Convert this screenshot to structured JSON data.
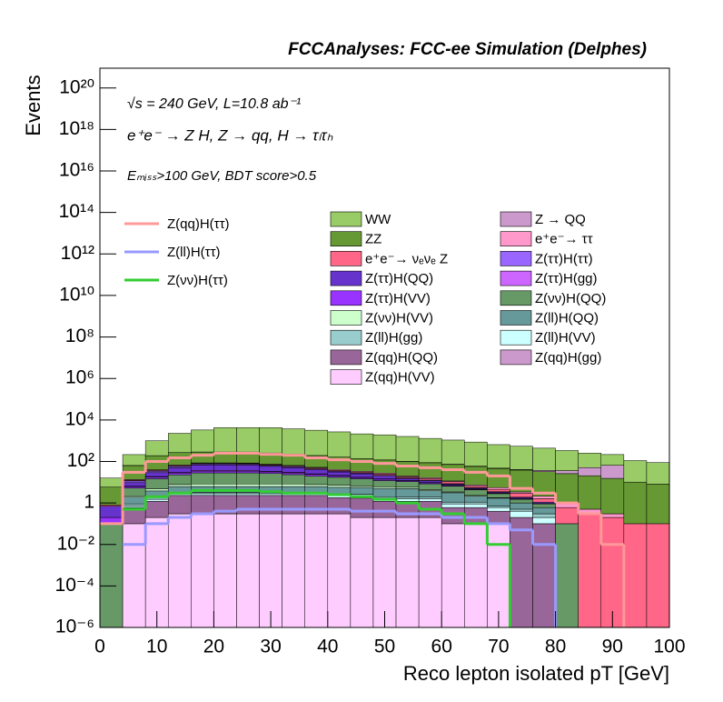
{
  "chart_data": {
    "type": "stacked_histogram",
    "title": "FCCAnalyses: FCC-ee Simulation (Delphes)",
    "x_label": "Reco lepton isolated pT [GeV]",
    "y_label": "Events",
    "annotations": [
      "√s = 240 GeV, L=10.8 ab⁻¹",
      "e⁺e⁻ → Z H, Z → qq, H → τₗτₕ",
      "Eₘᵢₛₛ>100 GeV, BDT score>0.5"
    ],
    "log_y": true,
    "bins": [
      0,
      4,
      8,
      12,
      16,
      20,
      24,
      28,
      32,
      36,
      40,
      44,
      48,
      52,
      56,
      60,
      64,
      68,
      72,
      76,
      80,
      84,
      88,
      92,
      96,
      100
    ],
    "xlim": [
      0,
      100
    ],
    "xticks": [
      0,
      10,
      20,
      30,
      40,
      50,
      60,
      70,
      80,
      90,
      100
    ],
    "ylim": [
      1e-06,
      9e+20
    ],
    "yticks": [
      {
        "value": 1e-06,
        "label": "10⁻⁶"
      },
      {
        "value": 0.0001,
        "label": "10⁻⁴"
      },
      {
        "value": 0.01,
        "label": "10⁻²"
      },
      1,
      {
        "value": 100.0,
        "label": "10²"
      },
      {
        "value": 10000.0,
        "label": "10⁴"
      },
      {
        "value": 1000000.0,
        "label": "10⁶"
      },
      {
        "value": 100000000.0,
        "label": "10⁸"
      },
      {
        "value": 10000000000.0,
        "label": "10¹⁰"
      },
      {
        "value": 1000000000000.0,
        "label": "10¹²"
      },
      {
        "value": 100000000000000.0,
        "label": "10¹⁴"
      },
      {
        "value": 1e+16,
        "label": "10¹⁶"
      },
      {
        "value": 1e+18,
        "label": "10¹⁸"
      },
      {
        "value": 1e+20,
        "label": "10²⁰"
      }
    ],
    "series": [
      {
        "name": "WW",
        "color": "#99cc66",
        "values": [
          10,
          150,
          800,
          2000,
          3000,
          4000,
          4000,
          4000,
          3500,
          3000,
          2500,
          2000,
          1800,
          1500,
          1200,
          1000,
          800,
          600,
          500,
          400,
          300,
          200,
          150,
          100,
          80
        ]
      },
      {
        "name": "Z → QQ",
        "color": "#cc99cc",
        "values": [
          0,
          0.5,
          0.5,
          0.5,
          1,
          1,
          1,
          1,
          1,
          1,
          1,
          1,
          1,
          1,
          1,
          2,
          2,
          2,
          2,
          5,
          10,
          30,
          50,
          0,
          0
        ]
      },
      {
        "name": "ZZ",
        "color": "#669933",
        "values": [
          5,
          50,
          150,
          200,
          200,
          200,
          200,
          180,
          160,
          140,
          120,
          100,
          90,
          80,
          70,
          60,
          50,
          40,
          35,
          30,
          25,
          20,
          15,
          10,
          8
        ]
      },
      {
        "name": "e⁺e⁻→ ττ",
        "color": "#ff99cc",
        "values": [
          0,
          1,
          3,
          5,
          5,
          5,
          5,
          5,
          5,
          4,
          4,
          3,
          3,
          2,
          2,
          1,
          1,
          1,
          0.5,
          0.5,
          0.3,
          0.2,
          0.1,
          0,
          0
        ]
      },
      {
        "name": "e⁺e⁻→ νₑνₑ Z",
        "color": "#ff6688",
        "values": [
          0.1,
          1,
          3,
          5,
          5,
          5,
          5,
          5,
          4,
          4,
          3,
          3,
          3,
          2,
          2,
          2,
          1,
          1,
          1,
          0.5,
          0.5,
          0.3,
          0.2,
          0.1,
          0.1
        ]
      },
      {
        "name": "Z(ττ)H(ττ)",
        "color": "#9966ff",
        "values": [
          0,
          2,
          5,
          8,
          8,
          8,
          7,
          6,
          5,
          4,
          3,
          2,
          2,
          1,
          1,
          0.5,
          0.3,
          0.2,
          0.1,
          0.1,
          0,
          0,
          0,
          0,
          0
        ]
      },
      {
        "name": "Z(ττ)H(QQ)",
        "color": "#6633cc",
        "values": [
          0.5,
          3,
          10,
          20,
          30,
          30,
          30,
          25,
          20,
          15,
          10,
          8,
          5,
          3,
          2,
          1,
          0.5,
          0.3,
          0.2,
          0.1,
          0,
          0,
          0,
          0,
          0
        ]
      },
      {
        "name": "Z(ττ)H(gg)",
        "color": "#cc66ff",
        "values": [
          0,
          0.3,
          1,
          2,
          3,
          3,
          3,
          2,
          2,
          1.5,
          1,
          0.8,
          0.5,
          0.3,
          0.2,
          0.1,
          0.05,
          0,
          0,
          0,
          0,
          0,
          0,
          0,
          0
        ]
      },
      {
        "name": "Z(ττ)H(VV)",
        "color": "#9933ff",
        "values": [
          0.1,
          1,
          3,
          5,
          6,
          6,
          6,
          5,
          5,
          4,
          3,
          2,
          2,
          1,
          1,
          0.5,
          0.3,
          0.2,
          0.1,
          0,
          0,
          0,
          0,
          0,
          0
        ]
      },
      {
        "name": "Z(νν)H(QQ)",
        "color": "#669966",
        "values": [
          0.1,
          3,
          10,
          15,
          20,
          20,
          20,
          18,
          15,
          12,
          10,
          8,
          6,
          5,
          4,
          3,
          2,
          1,
          0.5,
          0.3,
          0.1,
          0,
          0,
          0,
          0
        ]
      },
      {
        "name": "Z(νν)H(VV)",
        "color": "#ccffcc",
        "values": [
          0,
          0.3,
          1,
          1.5,
          2,
          2,
          2,
          2,
          2,
          1.5,
          1.5,
          1,
          1,
          0.8,
          0.5,
          0.3,
          0.2,
          0.1,
          0,
          0,
          0,
          0,
          0,
          0,
          0
        ]
      },
      {
        "name": "Z(ll)H(QQ)",
        "color": "#669999",
        "values": [
          0,
          1,
          2,
          3,
          3,
          3,
          3,
          3,
          3,
          3,
          3,
          3,
          3,
          3,
          2,
          2,
          1,
          1,
          0.5,
          0.3,
          0,
          0,
          0,
          0,
          0
        ]
      },
      {
        "name": "Z(ll)H(gg)",
        "color": "#99cccc",
        "values": [
          0,
          0.2,
          0.3,
          0.4,
          0.4,
          0.4,
          0.4,
          0.4,
          0.4,
          0.4,
          0.4,
          0.4,
          0.3,
          0.3,
          0.3,
          0.2,
          0.2,
          0.1,
          0.1,
          0.1,
          0,
          0,
          0,
          0,
          0
        ]
      },
      {
        "name": "Z(ll)H(VV)",
        "color": "#ccffff",
        "values": [
          0,
          0.1,
          0.3,
          0.5,
          0.5,
          0.5,
          0.5,
          0.5,
          0.5,
          0.5,
          0.5,
          0.5,
          0.5,
          0.4,
          0.4,
          0.3,
          0.3,
          0.2,
          0.2,
          0.1,
          0,
          0,
          0,
          0,
          0
        ]
      },
      {
        "name": "Z(qq)H(QQ)",
        "color": "#996699",
        "values": [
          0,
          0.5,
          1,
          2,
          2,
          2,
          2,
          2,
          2,
          2,
          1.5,
          1.5,
          1,
          1,
          1,
          0.5,
          0.5,
          0.3,
          0.2,
          0.1,
          0,
          0,
          0,
          0,
          0
        ]
      },
      {
        "name": "Z(qq)H(gg)",
        "color": "#cc99cc",
        "values": [
          0,
          0,
          0,
          0,
          0.01,
          0,
          0,
          0,
          0,
          0,
          0,
          0,
          0,
          0,
          0,
          0,
          0,
          0,
          0,
          0,
          0,
          0,
          0,
          0,
          0
        ]
      },
      {
        "name": "Z(qq)H(VV)",
        "color": "#ffccff",
        "values": [
          0,
          0.1,
          0.2,
          0.3,
          0.3,
          0.3,
          0.3,
          0.3,
          0.3,
          0.3,
          0.3,
          0.2,
          0.2,
          0.2,
          0.2,
          0.1,
          0.1,
          0.1,
          0,
          0,
          0,
          0,
          0,
          0,
          0
        ]
      }
    ],
    "line_series": [
      {
        "name": "Z(qq)H(ττ)",
        "color": "#ff9999",
        "values": [
          0.1,
          30,
          100,
          150,
          200,
          250,
          250,
          220,
          200,
          150,
          120,
          100,
          80,
          60,
          50,
          40,
          30,
          20,
          5,
          3,
          1,
          0.3,
          0.01,
          null,
          null
        ]
      },
      {
        "name": "Z(ll)H(ττ)",
        "color": "#9999ff",
        "values": [
          null,
          0.01,
          0.1,
          0.2,
          0.3,
          0.4,
          0.5,
          0.5,
          0.5,
          0.5,
          0.5,
          0.4,
          0.4,
          0.3,
          0.3,
          0.2,
          0.2,
          0.1,
          0.05,
          0.01,
          null,
          null,
          null,
          null,
          null
        ]
      },
      {
        "name": "Z(νν)H(ττ)",
        "color": "#33cc33",
        "values": [
          null,
          0.5,
          2,
          3,
          4,
          4,
          4,
          3.5,
          3,
          3,
          2.5,
          2,
          1.5,
          1,
          0.5,
          0.3,
          0.1,
          0.01,
          null,
          null,
          null,
          null,
          null,
          null,
          null
        ]
      }
    ]
  }
}
